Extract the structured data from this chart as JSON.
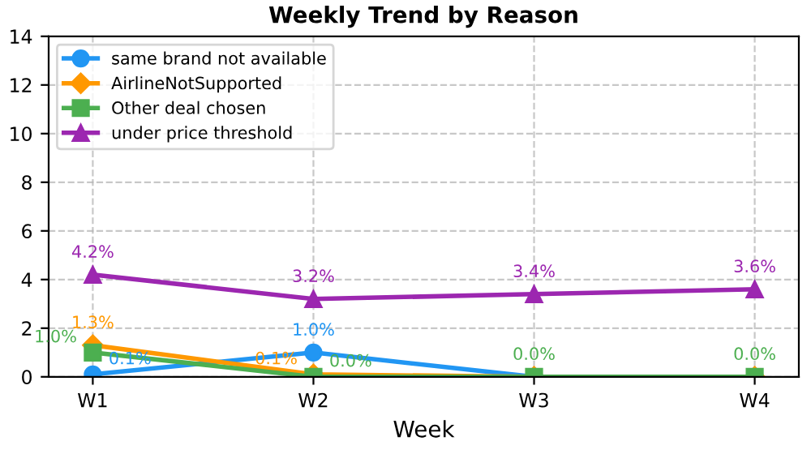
{
  "chart_data": {
    "type": "line",
    "title": "Weekly Trend by Reason",
    "xlabel": "Week",
    "categories": [
      "W1",
      "W2",
      "W3",
      "W4"
    ],
    "series": [
      {
        "name": "same brand not available",
        "color": "#2196f3",
        "marker": "circle",
        "values": [
          0.1,
          1.0,
          0.0,
          0.0
        ],
        "value_labels": [
          "0.1%",
          "1.0%",
          null,
          null
        ]
      },
      {
        "name": "AirlineNotSupported",
        "color": "#ff9800",
        "marker": "diamond",
        "values": [
          1.3,
          0.1,
          0.0,
          0.0
        ],
        "value_labels": [
          "1.3%",
          "0.1%",
          null,
          null
        ]
      },
      {
        "name": "Other deal chosen",
        "color": "#4caf50",
        "marker": "square",
        "values": [
          1.0,
          0.0,
          0.0,
          0.0
        ],
        "value_labels": [
          "1.0%",
          "0.0%",
          "0.0%",
          "0.0%"
        ]
      },
      {
        "name": "under price threshold",
        "color": "#9c27b0",
        "marker": "triangle",
        "values": [
          4.2,
          3.2,
          3.4,
          3.6
        ],
        "value_labels": [
          "4.2%",
          "3.2%",
          "3.4%",
          "3.6%"
        ]
      }
    ],
    "ylim": [
      0,
      14
    ],
    "yticks": [
      0,
      2,
      4,
      6,
      8,
      10,
      12,
      14
    ],
    "grid": true,
    "legend": "top left",
    "line_style": "solid"
  }
}
